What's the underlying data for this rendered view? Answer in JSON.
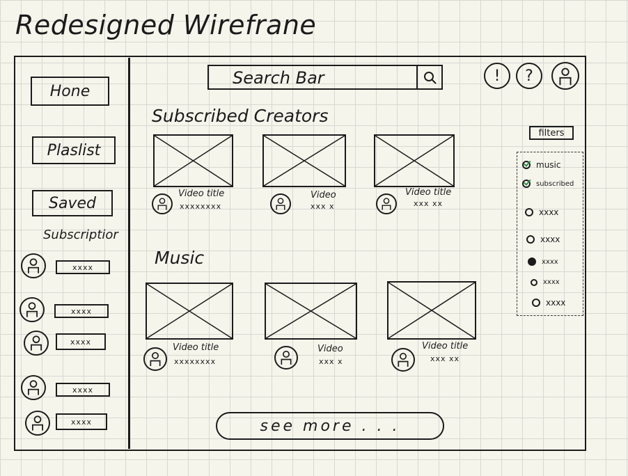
{
  "page": {
    "title": "Redesigned Wirefrane"
  },
  "sidebar": {
    "nav": [
      {
        "label": "Hone"
      },
      {
        "label": "Plaslist"
      },
      {
        "label": "Saved"
      }
    ],
    "subscriptions_heading": "Subscriptior",
    "subscriptions": [
      {
        "name": "xxxx"
      },
      {
        "name": "xxxx"
      },
      {
        "name": "xxxx"
      },
      {
        "name": "xxxx"
      },
      {
        "name": "xxxx"
      }
    ]
  },
  "header": {
    "search_placeholder": "Search Bar",
    "icons": [
      "alert-icon",
      "help-icon",
      "profile-icon"
    ],
    "alert_glyph": "!",
    "help_glyph": "?"
  },
  "main": {
    "sections": [
      {
        "title": "Subscribed Creators",
        "videos": [
          {
            "title": "Video title",
            "meta": "xxxxxxxx"
          },
          {
            "title": "Video",
            "meta": "xxx x"
          },
          {
            "title": "Video title",
            "meta": "xxx xx"
          }
        ]
      },
      {
        "title": "Music",
        "videos": [
          {
            "title": "Video title",
            "meta": "xxxxxxxx"
          },
          {
            "title": "Video",
            "meta": "xxx x"
          },
          {
            "title": "Video title",
            "meta": "xxx xx"
          }
        ]
      }
    ],
    "see_more": "see more . . ."
  },
  "filters": {
    "label": "filters",
    "options": [
      {
        "label": "music",
        "state": "checked"
      },
      {
        "label": "subscribed",
        "state": "checked"
      },
      {
        "label": "xxxx",
        "state": "empty"
      },
      {
        "label": "xxxx",
        "state": "empty"
      },
      {
        "label": "xxxx",
        "state": "selected"
      },
      {
        "label": "xxxx",
        "state": "empty"
      },
      {
        "label": "xxxx",
        "state": "empty"
      }
    ]
  }
}
